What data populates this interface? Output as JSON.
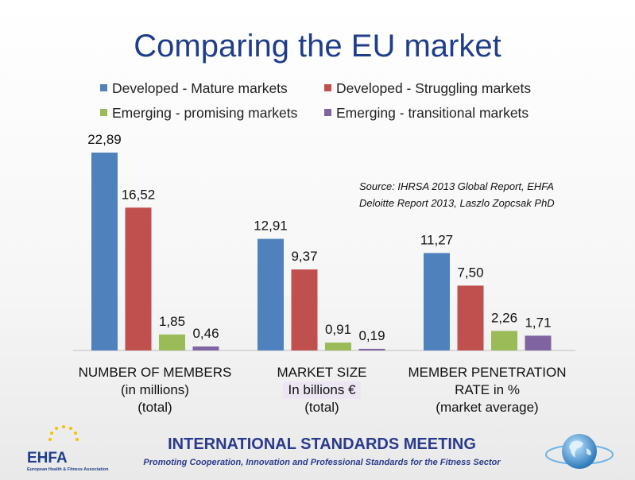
{
  "title": "Comparing the EU market",
  "legend": [
    {
      "label": "Developed - Mature markets",
      "color": "#4f81bd"
    },
    {
      "label": "Developed - Struggling markets",
      "color": "#c0504d"
    },
    {
      "label": "Emerging - promising markets",
      "color": "#9bbb59"
    },
    {
      "label": "Emerging - transitional markets",
      "color": "#8064a2"
    }
  ],
  "source_lines": [
    "Source: IHRSA 2013 Global Report, EHFA",
    "Deloitte Report 2013, Laszlo Zopcsak PhD"
  ],
  "chart_data": {
    "type": "bar",
    "title": "Comparing the EU market",
    "categories": [
      "NUMBER OF MEMBERS (in millions) (total)",
      "MARKET SIZE In billions € (total)",
      "MEMBER PENETRATION RATE in % (market average)"
    ],
    "series": [
      {
        "name": "Developed - Mature markets",
        "values": [
          22.89,
          12.91,
          11.27
        ],
        "labels": [
          "22,89",
          "12,91",
          "11,27"
        ]
      },
      {
        "name": "Developed - Struggling markets",
        "values": [
          16.52,
          9.37,
          7.5
        ],
        "labels": [
          "16,52",
          "9,37",
          "7,50"
        ]
      },
      {
        "name": "Emerging - promising markets",
        "values": [
          1.85,
          0.91,
          2.26
        ],
        "labels": [
          "1,85",
          "0,91",
          "2,26"
        ]
      },
      {
        "name": "Emerging - transitional markets",
        "values": [
          0.46,
          0.19,
          1.71
        ],
        "labels": [
          "0,46",
          "0,19",
          "1,71"
        ]
      }
    ],
    "ylim": [
      0,
      25
    ],
    "grid": false,
    "legend_position": "top"
  },
  "category_labels": [
    {
      "line1": "NUMBER OF MEMBERS",
      "line2": "(in millions)",
      "line3": "(total)"
    },
    {
      "line1": "MARKET SIZE",
      "line2": "In  billions €",
      "line3": "(total)"
    },
    {
      "line1": "MEMBER PENETRATION",
      "line2": "RATE in %",
      "line3": "(market average)"
    }
  ],
  "footer": {
    "title": "INTERNATIONAL STANDARDS MEETING",
    "subtitle": "Promoting Cooperation,  Innovation and Professional Standards  for the Fitness Sector",
    "logo": "EHFA",
    "logo_sub": "European Health & Fitness Association"
  }
}
